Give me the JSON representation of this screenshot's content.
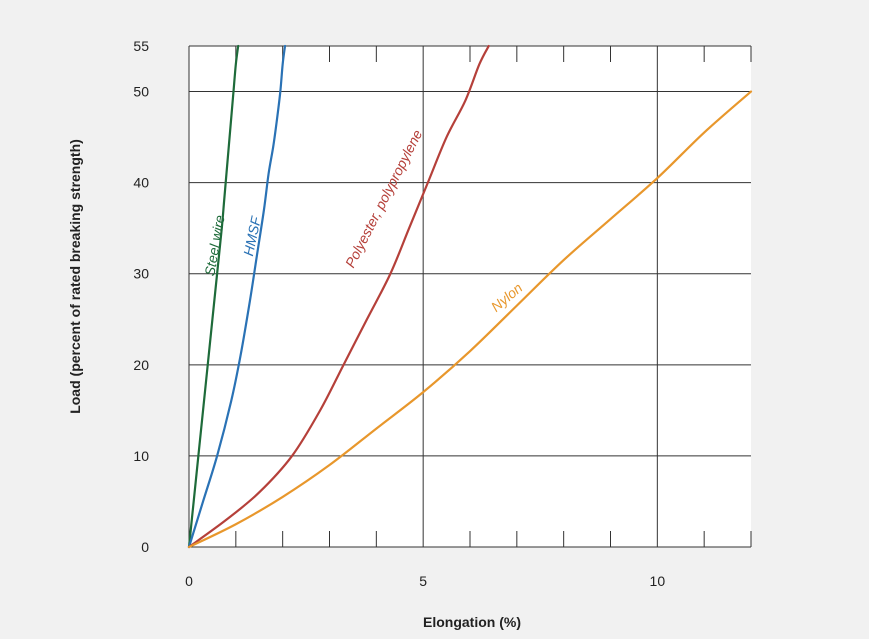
{
  "chart_data": {
    "type": "line",
    "title": "",
    "xlabel": "Elongation (%)",
    "ylabel": "Load (percent of rated breaking strength)",
    "xlim": [
      0,
      12
    ],
    "ylim": [
      0,
      55
    ],
    "x_ticks": [
      0,
      5,
      10
    ],
    "x_tick_labels": [
      "0",
      "5",
      "10"
    ],
    "y_ticks": [
      0,
      10,
      20,
      30,
      40,
      50,
      55
    ],
    "y_tick_labels": [
      "0",
      "10",
      "20",
      "30",
      "40",
      "50",
      "55"
    ],
    "grid": true,
    "legend": "none",
    "colors": {
      "background": "#f1f1f1",
      "plot_bg": "#ffffff",
      "grid": "#333333"
    },
    "series": [
      {
        "name": "Steel wire",
        "color": "#1e6b3a",
        "x": [
          0,
          0.1,
          0.2,
          0.3,
          0.4,
          0.5,
          0.6,
          0.7,
          0.75,
          0.8,
          0.85,
          0.9,
          0.95,
          1.0,
          1.05
        ],
        "y": [
          0,
          5,
          10,
          15,
          20,
          25,
          30,
          35,
          38,
          41,
          44,
          47,
          50,
          53,
          55
        ]
      },
      {
        "name": "HMSF",
        "color": "#2a72b5",
        "x": [
          0,
          0.3,
          0.6,
          0.9,
          1.1,
          1.3,
          1.45,
          1.6,
          1.7,
          1.8,
          1.88,
          1.95,
          2.0,
          2.05
        ],
        "y": [
          0,
          5,
          10,
          16,
          21,
          27,
          32,
          37,
          41,
          44,
          47,
          50,
          53,
          55
        ]
      },
      {
        "name": "Polyester, polypropylene",
        "color": "#b5403a",
        "x": [
          0,
          0.8,
          1.5,
          2.2,
          2.8,
          3.3,
          3.8,
          4.3,
          4.7,
          5.1,
          5.5,
          5.9,
          6.2,
          6.4
        ],
        "y": [
          0,
          3,
          6,
          10,
          15,
          20,
          25,
          30,
          35,
          40,
          45,
          49,
          53,
          55
        ]
      },
      {
        "name": "Nylon",
        "color": "#e8972c",
        "x": [
          0,
          1,
          2,
          3,
          4,
          5,
          6,
          7,
          8,
          9,
          10,
          11,
          12
        ],
        "y": [
          0,
          2.5,
          5.5,
          9,
          13,
          17,
          21.5,
          26.5,
          31.5,
          36,
          40.5,
          45.5,
          50
        ]
      }
    ],
    "annotations": [
      {
        "text": "Steel wire",
        "series": "Steel wire"
      },
      {
        "text": "HMSF",
        "series": "HMSF"
      },
      {
        "text": "Polyester, polypropylene",
        "series": "Polyester, polypropylene"
      },
      {
        "text": "Nylon",
        "series": "Nylon"
      }
    ]
  }
}
